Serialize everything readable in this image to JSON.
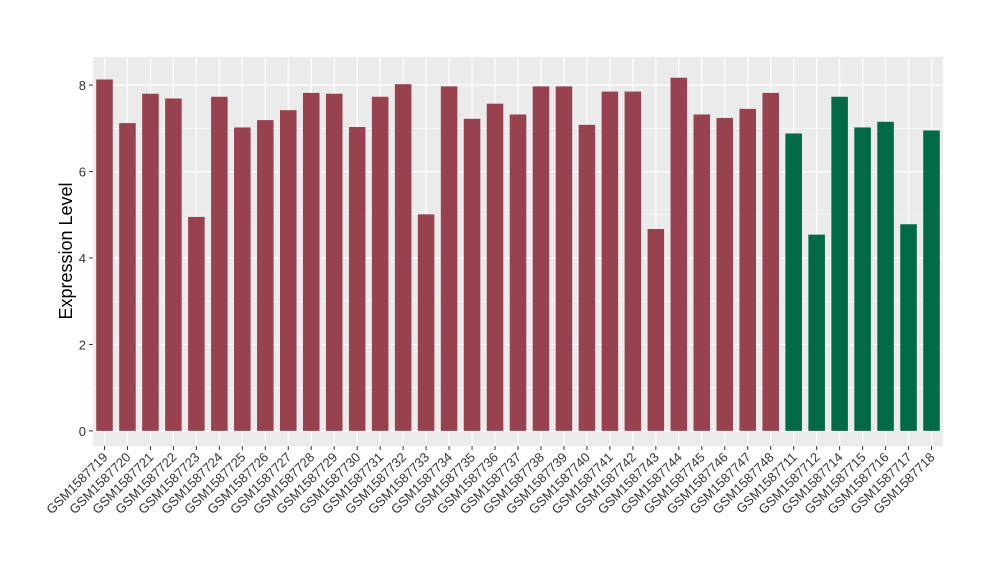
{
  "chart_data": {
    "type": "bar",
    "ylabel": "Expression Level",
    "xlabel": "",
    "ylim": [
      -0.35,
      8.65
    ],
    "yticks": [
      0,
      2,
      4,
      6,
      8
    ],
    "grid": true,
    "legend": "none",
    "colors": {
      "group_1": "#984250",
      "group_2": "#006a46",
      "panel": "#ebebeb",
      "grid": "#ffffff",
      "text": "#000000",
      "tick_text": "#333333"
    },
    "categories": [
      "GSM1587719",
      "GSM1587720",
      "GSM1587721",
      "GSM1587722",
      "GSM1587723",
      "GSM1587724",
      "GSM1587725",
      "GSM1587726",
      "GSM1587727",
      "GSM1587728",
      "GSM1587729",
      "GSM1587730",
      "GSM1587731",
      "GSM1587732",
      "GSM1587733",
      "GSM1587734",
      "GSM1587735",
      "GSM1587736",
      "GSM1587737",
      "GSM1587738",
      "GSM1587739",
      "GSM1587740",
      "GSM1587741",
      "GSM1587742",
      "GSM1587743",
      "GSM1587744",
      "GSM1587745",
      "GSM1587746",
      "GSM1587747",
      "GSM1587748",
      "GSM1587711",
      "GSM1587712",
      "GSM1587714",
      "GSM1587715",
      "GSM1587716",
      "GSM1587717",
      "GSM1587718"
    ],
    "values": [
      8.13,
      7.12,
      7.8,
      7.69,
      4.95,
      7.73,
      7.02,
      7.19,
      7.42,
      7.82,
      7.8,
      7.03,
      7.73,
      8.02,
      5.01,
      7.97,
      7.22,
      7.57,
      7.32,
      7.97,
      7.97,
      7.08,
      7.85,
      7.85,
      4.67,
      8.17,
      7.32,
      7.24,
      7.45,
      7.82,
      6.88,
      4.54,
      7.73,
      7.02,
      7.15,
      4.78,
      6.95
    ],
    "groups": [
      "group_1",
      "group_1",
      "group_1",
      "group_1",
      "group_1",
      "group_1",
      "group_1",
      "group_1",
      "group_1",
      "group_1",
      "group_1",
      "group_1",
      "group_1",
      "group_1",
      "group_1",
      "group_1",
      "group_1",
      "group_1",
      "group_1",
      "group_1",
      "group_1",
      "group_1",
      "group_1",
      "group_1",
      "group_1",
      "group_1",
      "group_1",
      "group_1",
      "group_1",
      "group_1",
      "group_2",
      "group_2",
      "group_2",
      "group_2",
      "group_2",
      "group_2",
      "group_2"
    ]
  }
}
